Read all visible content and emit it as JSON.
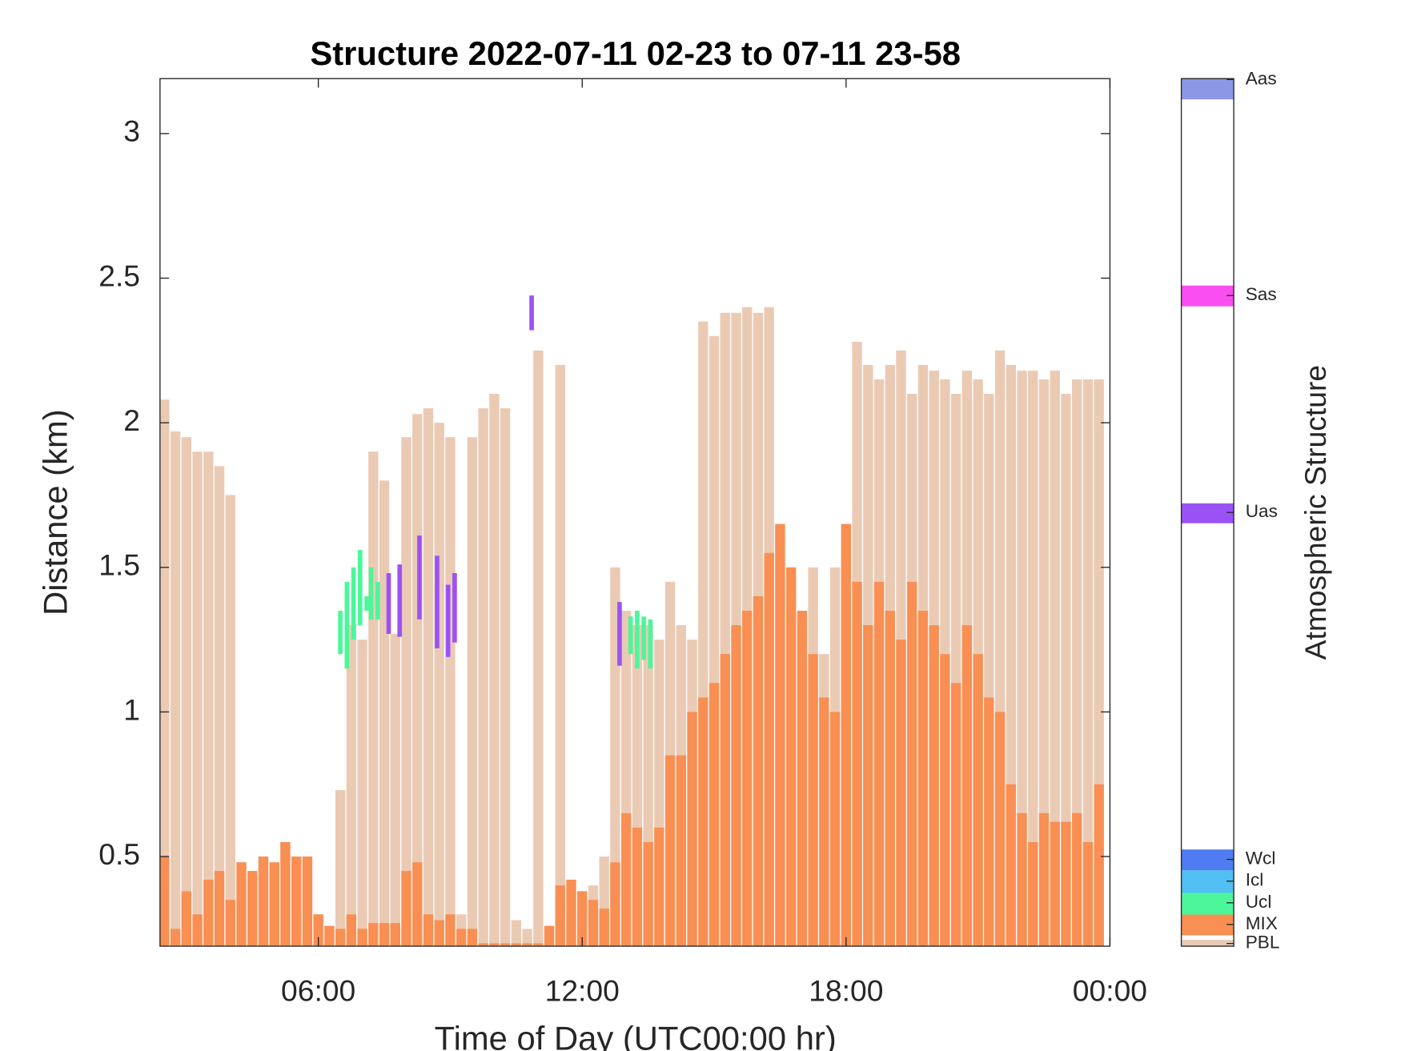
{
  "chart_data": {
    "type": "bar",
    "title": "Structure 2022-07-11 02-23 to 07-11 23-58",
    "xlabel": "Time of Day (UTC00:00 hr)",
    "ylabel": "Distance (km)",
    "xlim": [
      2.4,
      24
    ],
    "ylim": [
      0.19,
      3.19
    ],
    "xticks": [
      {
        "value": 6,
        "label": "06:00"
      },
      {
        "value": 12,
        "label": "12:00"
      },
      {
        "value": 18,
        "label": "18:00"
      },
      {
        "value": 24,
        "label": "00:00"
      }
    ],
    "yticks": [
      0.5,
      1,
      1.5,
      2,
      2.5,
      3
    ],
    "x": [
      2.5,
      2.75,
      3,
      3.25,
      3.5,
      3.75,
      4,
      4.25,
      4.5,
      4.75,
      5,
      5.25,
      5.5,
      5.75,
      6,
      6.25,
      6.5,
      6.75,
      7,
      7.25,
      7.5,
      7.75,
      8,
      8.25,
      8.5,
      8.75,
      9,
      9.25,
      9.5,
      9.75,
      10,
      10.25,
      10.5,
      10.75,
      11,
      11.25,
      11.5,
      11.75,
      12,
      12.25,
      12.5,
      12.75,
      13,
      13.25,
      13.5,
      13.75,
      14,
      14.25,
      14.5,
      14.75,
      15,
      15.25,
      15.5,
      15.75,
      16,
      16.25,
      16.5,
      16.75,
      17,
      17.25,
      17.5,
      17.75,
      18,
      18.25,
      18.5,
      18.75,
      19,
      19.25,
      19.5,
      19.75,
      20,
      20.25,
      20.5,
      20.75,
      21,
      21.25,
      21.5,
      21.75,
      22,
      22.25,
      22.5,
      22.75,
      23,
      23.25,
      23.5,
      23.75
    ],
    "series": [
      {
        "name": "PBL",
        "color": "#ebcab4",
        "values": [
          2.08,
          1.97,
          1.95,
          1.9,
          1.9,
          1.85,
          1.75,
          0.48,
          0.45,
          0.5,
          0.48,
          0.55,
          0.5,
          0.5,
          0.3,
          0.26,
          0.73,
          1.3,
          1.25,
          1.9,
          1.8,
          1.27,
          1.95,
          2.03,
          2.05,
          2.0,
          1.95,
          0.3,
          1.95,
          2.05,
          2.1,
          2.05,
          0.28,
          0.25,
          2.25,
          0.26,
          2.2,
          0.3,
          0.38,
          0.4,
          0.5,
          1.5,
          1.35,
          1.3,
          1.3,
          1.25,
          1.45,
          1.3,
          1.25,
          2.35,
          2.3,
          2.38,
          2.38,
          2.4,
          2.38,
          2.4,
          1.65,
          1.4,
          1.3,
          1.5,
          1.2,
          1.5,
          1.6,
          2.28,
          2.2,
          2.15,
          2.2,
          2.25,
          2.1,
          2.2,
          2.18,
          2.15,
          2.1,
          2.18,
          2.15,
          2.1,
          2.25,
          2.2,
          2.18,
          2.18,
          2.15,
          2.18,
          2.1,
          2.15,
          2.15,
          2.15
        ]
      },
      {
        "name": "MIX",
        "color": "#f98f52",
        "values": [
          0.5,
          0.25,
          0.38,
          0.3,
          0.42,
          0.45,
          0.35,
          0.48,
          0.45,
          0.5,
          0.48,
          0.55,
          0.5,
          0.5,
          0.3,
          0.26,
          0.25,
          0.3,
          0.25,
          0.27,
          0.27,
          0.27,
          0.45,
          0.48,
          0.3,
          0.28,
          0.3,
          0.25,
          0.25,
          0.2,
          0.2,
          0.2,
          0.2,
          0.2,
          0.2,
          0.26,
          0.4,
          0.42,
          0.38,
          0.35,
          0.32,
          0.48,
          0.65,
          0.6,
          0.55,
          0.6,
          0.85,
          0.85,
          1.0,
          1.05,
          1.1,
          1.2,
          1.3,
          1.35,
          1.4,
          1.55,
          1.65,
          1.5,
          1.35,
          1.2,
          1.05,
          1.0,
          1.65,
          1.45,
          1.3,
          1.45,
          1.35,
          1.25,
          1.45,
          1.35,
          1.3,
          1.2,
          1.1,
          1.3,
          1.2,
          1.05,
          1.0,
          0.75,
          0.65,
          0.55,
          0.65,
          0.62,
          0.62,
          0.65,
          0.55,
          0.75
        ]
      }
    ],
    "layers": [
      {
        "name": "Ucl",
        "color": "#4cf79b",
        "x": [
          6.5,
          6.65,
          6.8,
          6.95,
          7.1,
          7.2,
          7.35,
          13.1,
          13.25,
          13.4,
          13.55
        ],
        "base": [
          1.2,
          1.15,
          1.25,
          1.3,
          1.35,
          1.32,
          1.32,
          1.2,
          1.15,
          1.18,
          1.15
        ],
        "top": [
          1.35,
          1.45,
          1.5,
          1.56,
          1.4,
          1.5,
          1.45,
          1.33,
          1.35,
          1.33,
          1.32
        ]
      },
      {
        "name": "Uas",
        "color": "#9b52f5",
        "x": [
          7.6,
          7.85,
          8.3,
          8.7,
          8.95,
          9.1,
          10.85,
          12.85
        ],
        "base": [
          1.27,
          1.26,
          1.32,
          1.22,
          1.19,
          1.24,
          2.32,
          1.16
        ],
        "top": [
          1.48,
          1.51,
          1.61,
          1.54,
          1.44,
          1.48,
          2.44,
          1.38
        ]
      }
    ],
    "colorbar": {
      "label": "Atmospheric Structure",
      "entries": [
        {
          "name": "PBL",
          "color": "#ebcab4"
        },
        {
          "name": "MIX",
          "color": "#f98f52"
        },
        {
          "name": "Ucl",
          "color": "#4cf79b"
        },
        {
          "name": "Icl",
          "color": "#52bff5"
        },
        {
          "name": "Wcl",
          "color": "#4f7cf2"
        },
        {
          "name": "Uas",
          "color": "#9b52f5"
        },
        {
          "name": "Sas",
          "color": "#f94ff0"
        },
        {
          "name": "Aas",
          "color": "#8b98e6"
        }
      ]
    }
  }
}
